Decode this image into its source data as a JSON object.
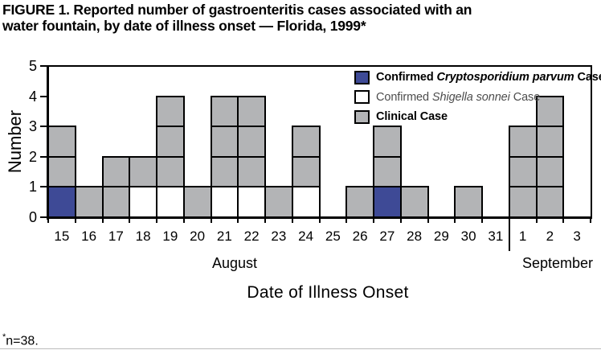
{
  "figure": {
    "title_line1": "FIGURE 1. Reported number of gastroenteritis cases associated with an",
    "title_line2": "water fountain, by date of illness onset — Florida, 1999*",
    "footnote_marker": "*",
    "footnote_text": "n=38."
  },
  "chart_data": {
    "type": "bar",
    "subtype": "epi-curve-stacked-unit-squares",
    "title": "Reported number of gastroenteritis cases associated with an water fountain, by date of illness onset — Florida, 1999",
    "xlabel": "Date of Illness Onset",
    "ylabel": "Number",
    "ylim": [
      0,
      5
    ],
    "yticks": [
      "0",
      "1",
      "2",
      "3",
      "4",
      "5"
    ],
    "grid": false,
    "legend_position": "top-right-inside",
    "months": [
      {
        "label": "August",
        "span_days": 17
      },
      {
        "label": "September",
        "span_days": 3
      }
    ],
    "columns": [
      {
        "month": "August",
        "date": "15",
        "cells": [
          "crypto",
          "clinical",
          "clinical"
        ]
      },
      {
        "month": "August",
        "date": "16",
        "cells": [
          "clinical"
        ]
      },
      {
        "month": "August",
        "date": "17",
        "cells": [
          "clinical",
          "clinical"
        ]
      },
      {
        "month": "August",
        "date": "18",
        "cells": [
          "shigella",
          "clinical"
        ]
      },
      {
        "month": "August",
        "date": "19",
        "cells": [
          "shigella",
          "clinical",
          "clinical",
          "clinical"
        ]
      },
      {
        "month": "August",
        "date": "20",
        "cells": [
          "clinical"
        ]
      },
      {
        "month": "August",
        "date": "21",
        "cells": [
          "shigella",
          "clinical",
          "clinical",
          "clinical"
        ]
      },
      {
        "month": "August",
        "date": "22",
        "cells": [
          "shigella",
          "clinical",
          "clinical",
          "clinical"
        ]
      },
      {
        "month": "August",
        "date": "23",
        "cells": [
          "clinical"
        ]
      },
      {
        "month": "August",
        "date": "24",
        "cells": [
          "shigella",
          "clinical",
          "clinical"
        ]
      },
      {
        "month": "August",
        "date": "25",
        "cells": []
      },
      {
        "month": "August",
        "date": "26",
        "cells": [
          "clinical"
        ]
      },
      {
        "month": "August",
        "date": "27",
        "cells": [
          "crypto",
          "clinical",
          "clinical"
        ]
      },
      {
        "month": "August",
        "date": "28",
        "cells": [
          "clinical"
        ]
      },
      {
        "month": "August",
        "date": "29",
        "cells": []
      },
      {
        "month": "August",
        "date": "30",
        "cells": [
          "clinical"
        ]
      },
      {
        "month": "August",
        "date": "31",
        "cells": []
      },
      {
        "month": "September",
        "date": "1",
        "cells": [
          "clinical",
          "clinical",
          "clinical"
        ]
      },
      {
        "month": "September",
        "date": "2",
        "cells": [
          "clinical",
          "clinical",
          "clinical",
          "clinical"
        ]
      },
      {
        "month": "September",
        "date": "3",
        "cells": []
      }
    ],
    "legend": [
      {
        "key": "crypto",
        "swatch_color": "#3e4a96",
        "prefix": "Confirmed ",
        "italic": "Cryptosporidium parvum",
        "suffix": " Case",
        "bold": true
      },
      {
        "key": "shigella",
        "swatch_color": "#ffffff",
        "prefix": "Confirmed ",
        "italic": "Shigella sonnei",
        "suffix": " Case",
        "bold": false
      },
      {
        "key": "clinical",
        "swatch_color": "#b3b4b6",
        "prefix": "Clinical Case",
        "italic": "",
        "suffix": "",
        "bold": true
      }
    ],
    "colors": {
      "crypto": "#3e4a96",
      "shigella": "#ffffff",
      "clinical": "#b3b4b6",
      "cell_border": "#000000"
    }
  }
}
